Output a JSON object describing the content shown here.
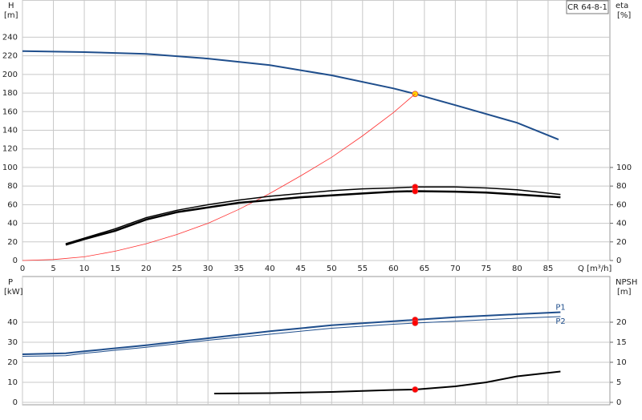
{
  "chart_data": [
    {
      "type": "line",
      "title": "CR 64-8-1",
      "y_label": "H",
      "y_unit": "[m]",
      "y2_label": "eta",
      "y2_unit": "[%]",
      "x_label": "Q [m³/h]",
      "xlim": [
        0,
        95
      ],
      "xticks": [
        0,
        5,
        10,
        15,
        20,
        25,
        30,
        35,
        40,
        45,
        50,
        55,
        60,
        65,
        70,
        75,
        80,
        85
      ],
      "ylim": [
        0,
        280
      ],
      "yticks": [
        0,
        20,
        40,
        60,
        80,
        100,
        120,
        140,
        160,
        180,
        200,
        220,
        240
      ],
      "y2lim": [
        0,
        280
      ],
      "y2ticks": [
        0,
        20,
        40,
        60,
        80,
        100
      ],
      "grid": true,
      "duty_x": 63.5,
      "series": [
        {
          "color": "#1f4e8c",
          "width": 2,
          "marker_color": "#ffd700",
          "x": [
            0,
            10,
            20,
            30,
            40,
            50,
            60,
            63.5,
            70,
            80,
            86.7
          ],
          "values": [
            225,
            224,
            222,
            217,
            210,
            199,
            185,
            179,
            167,
            148,
            130
          ]
        },
        {
          "color": "#ff3030",
          "width": 0.8,
          "x": [
            0,
            5,
            10,
            15,
            20,
            25,
            30,
            35,
            40,
            45,
            50,
            55,
            60,
            63.5
          ],
          "values": [
            0,
            1,
            4,
            10,
            18,
            28,
            40,
            55,
            72,
            91,
            111,
            134,
            159,
            179
          ]
        },
        {
          "color": "#000000",
          "width": 1.5,
          "axis": "y2",
          "marker_color": "#ff0000",
          "x": [
            7,
            10,
            15,
            20,
            25,
            30,
            35,
            40,
            45,
            50,
            55,
            60,
            63.5,
            70,
            75,
            80,
            87
          ],
          "values": [
            18,
            24,
            34,
            46,
            54,
            60,
            65,
            69,
            72,
            75,
            77,
            78,
            79,
            79,
            78,
            76,
            71
          ]
        },
        {
          "color": "#000000",
          "width": 2.5,
          "axis": "y2",
          "marker_color": "#ff0000",
          "x": [
            7,
            10,
            15,
            20,
            25,
            30,
            35,
            40,
            45,
            50,
            55,
            60,
            63.5,
            70,
            75,
            80,
            87
          ],
          "values": [
            17,
            23,
            32,
            44,
            52,
            57,
            62,
            65,
            68,
            70,
            72,
            74,
            74.5,
            74,
            73,
            71,
            68
          ]
        }
      ]
    },
    {
      "type": "line",
      "y_label": "P",
      "y_unit": "[kW]",
      "y2_label": "NPSH",
      "y2_unit": "[m]",
      "xlim": [
        0,
        95
      ],
      "ylim": [
        -1.2,
        62.8
      ],
      "yticks": [
        0,
        10,
        20,
        30,
        40
      ],
      "y2lim": [
        -0.6,
        31.4
      ],
      "y2ticks": [
        0,
        5,
        10,
        15,
        20
      ],
      "grid": true,
      "duty_x": 63.5,
      "series": [
        {
          "name": "P1",
          "color": "#1f4e8c",
          "width": 2,
          "marker_color": "#ff0000",
          "x": [
            0,
            7,
            10,
            20,
            30,
            40,
            50,
            60,
            63.5,
            70,
            80,
            87
          ],
          "values": [
            24,
            24.5,
            25.5,
            28.5,
            32,
            35.5,
            38.5,
            40.5,
            41.2,
            42.5,
            44,
            45
          ]
        },
        {
          "name": "P2",
          "color": "#1f4e8c",
          "width": 1,
          "marker_color": "#ff0000",
          "x": [
            0,
            7,
            10,
            20,
            30,
            40,
            50,
            60,
            63.5,
            70,
            80,
            87
          ],
          "values": [
            23,
            23.3,
            24.5,
            27.5,
            31,
            34,
            37,
            39,
            39.6,
            40.5,
            42,
            42.8
          ]
        },
        {
          "color": "#000000",
          "width": 2,
          "axis": "y2",
          "marker_color": "#ff0000",
          "x": [
            31,
            40,
            50,
            60,
            63.5,
            70,
            75,
            80,
            87
          ],
          "values": [
            2.2,
            2.3,
            2.6,
            3.1,
            3.2,
            4,
            5,
            6.5,
            7.7
          ]
        }
      ]
    }
  ]
}
